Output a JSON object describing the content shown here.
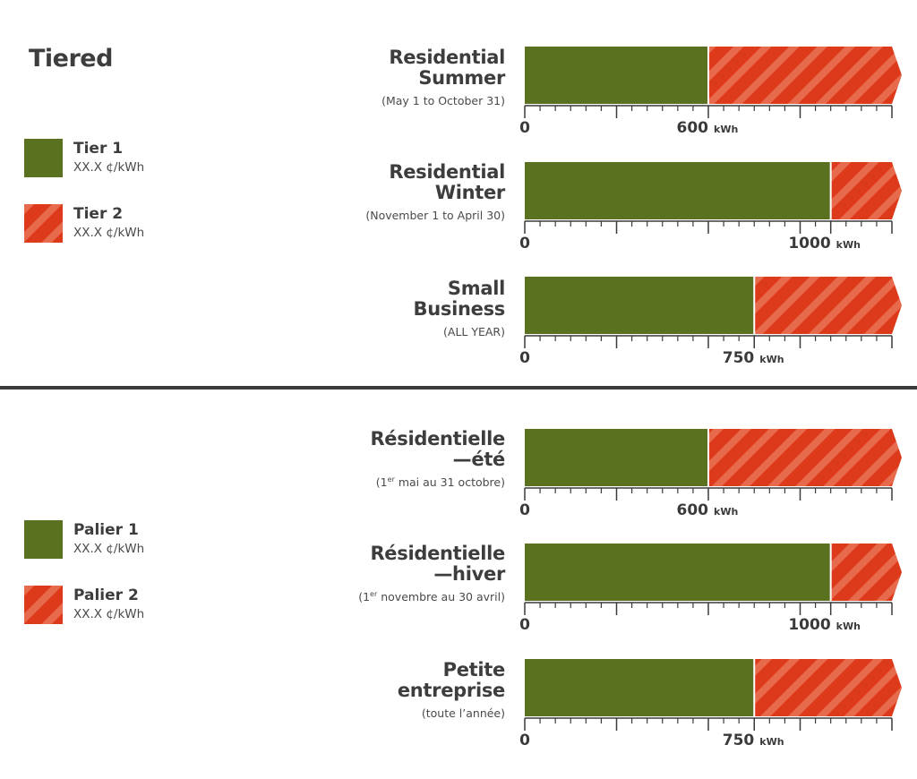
{
  "colors": {
    "tier1": "#5a7120",
    "tier2": "#dc3a1a",
    "tier2_stripe": "#e86a4c",
    "text": "#3d3d3d",
    "axis": "#3a3a3a"
  },
  "english": {
    "title": "Tiered",
    "legend": [
      {
        "name": "Tier 1",
        "rate": "XX.X ¢/kWh"
      },
      {
        "name": "Tier 2",
        "rate": "XX.X ¢/kWh"
      }
    ]
  },
  "french": {
    "legend": [
      {
        "name": "Palier 1",
        "rate": "XX.X ¢/kWh"
      },
      {
        "name": "Palier 2",
        "rate": "XX.X ¢/kWh"
      }
    ]
  },
  "chart_data": [
    {
      "type": "bar",
      "line1": "Residential",
      "line2": "Summer",
      "subtitle": "(May 1 to October 31)",
      "threshold": 600,
      "threshold_label": "600",
      "unit": "kWh",
      "xlim": [
        0,
        1200
      ],
      "tick_start": "0"
    },
    {
      "type": "bar",
      "line1": "Residential",
      "line2": "Winter",
      "subtitle": "(November 1 to April 30)",
      "threshold": 1000,
      "threshold_label": "1000",
      "unit": "kWh",
      "xlim": [
        0,
        1200
      ],
      "tick_start": "0"
    },
    {
      "type": "bar",
      "line1": "Small",
      "line2": "Business",
      "subtitle": "(ALL YEAR)",
      "threshold": 750,
      "threshold_label": "750",
      "unit": "kWh",
      "xlim": [
        0,
        1200
      ],
      "tick_start": "0"
    },
    {
      "type": "bar",
      "line1": "Résidentielle",
      "line2": "—été",
      "subtitle_pre": "(1",
      "subtitle_sup": "er",
      "subtitle_post": " mai au 31 octobre)",
      "threshold": 600,
      "threshold_label": "600",
      "unit": "kWh",
      "xlim": [
        0,
        1200
      ],
      "tick_start": "0"
    },
    {
      "type": "bar",
      "line1": "Résidentielle",
      "line2": "—hiver",
      "subtitle_pre": "(1",
      "subtitle_sup": "er",
      "subtitle_post": " novembre au 30 avril)",
      "threshold": 1000,
      "threshold_label": "1000",
      "unit": "kWh",
      "xlim": [
        0,
        1200
      ],
      "tick_start": "0"
    },
    {
      "type": "bar",
      "line1": "Petite",
      "line2": "entreprise",
      "subtitle": "(toute l’année)",
      "threshold": 750,
      "threshold_label": "750",
      "unit": "kWh",
      "xlim": [
        0,
        1200
      ],
      "tick_start": "0"
    }
  ]
}
